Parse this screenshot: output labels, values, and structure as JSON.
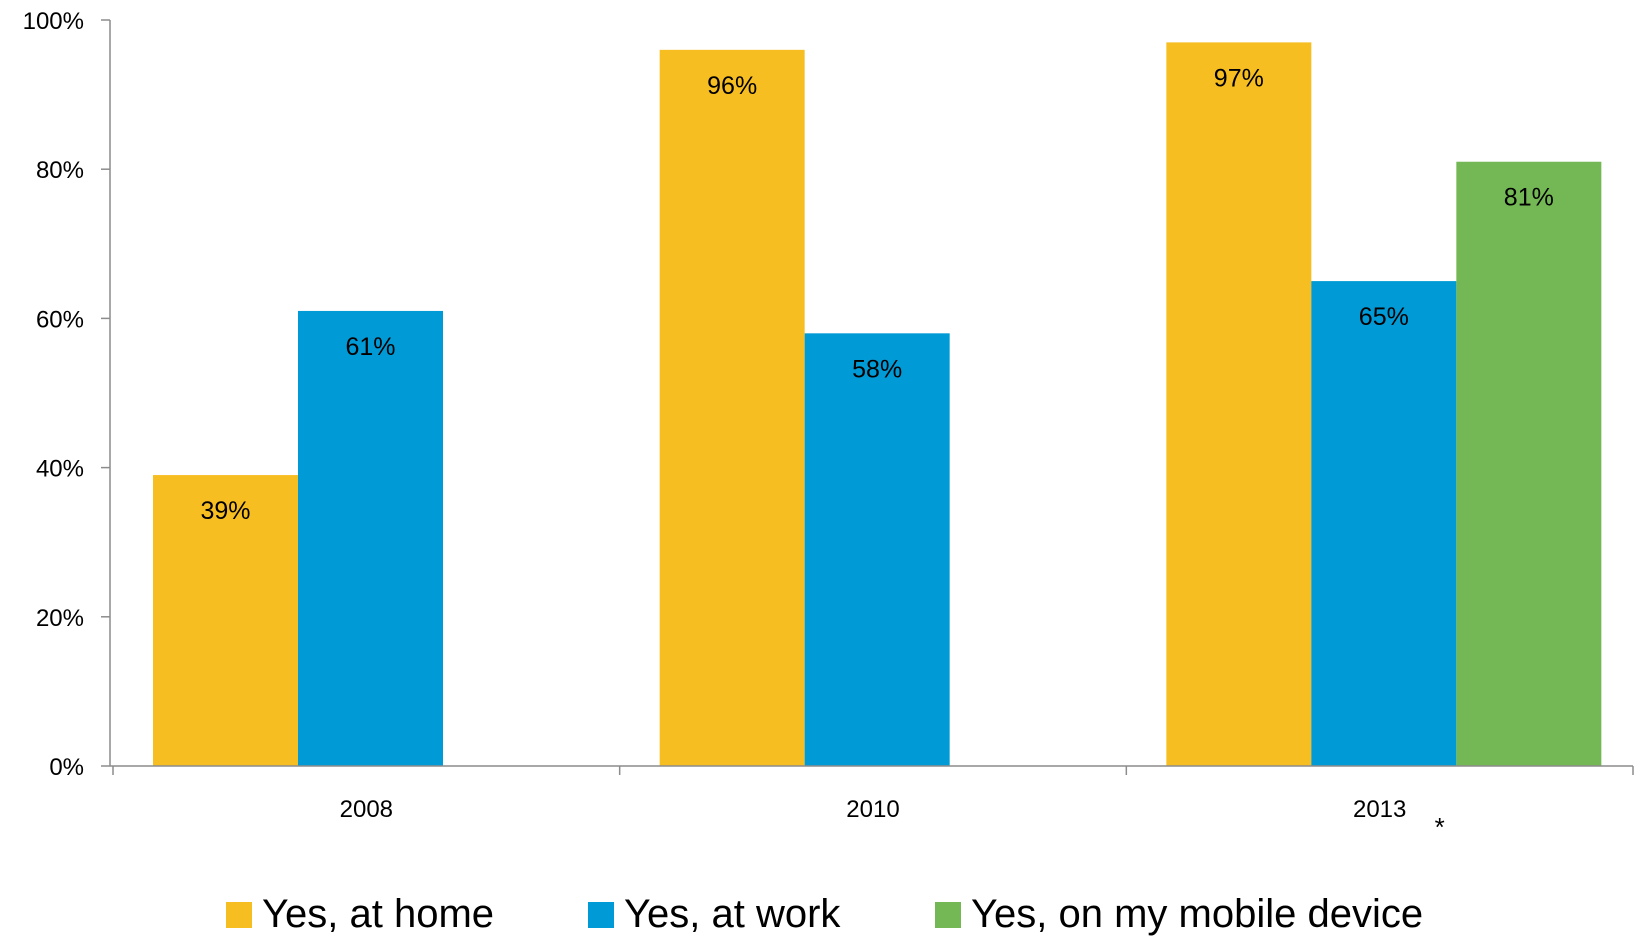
{
  "chart_data": {
    "type": "bar",
    "categories": [
      "2008",
      "2010",
      "2013"
    ],
    "category_annotations": [
      "",
      "",
      "*"
    ],
    "series": [
      {
        "name": "Yes, at home",
        "color": "#F7BE22",
        "values": [
          39,
          96,
          97
        ],
        "labels": [
          "39%",
          "96%",
          "97%"
        ]
      },
      {
        "name": "Yes, at work",
        "color": "#009AD6",
        "values": [
          61,
          58,
          65
        ],
        "labels": [
          "61%",
          "58%",
          "65%"
        ]
      },
      {
        "name": "Yes, on my mobile device",
        "color": "#74B855",
        "values": [
          null,
          null,
          81
        ],
        "labels": [
          "",
          "",
          "81%"
        ]
      }
    ],
    "yticks": [
      "0%",
      "20%",
      "40%",
      "60%",
      "80%",
      "100%"
    ],
    "ylim": [
      0,
      100
    ],
    "title": "",
    "xlabel": "",
    "ylabel": "",
    "grid": false,
    "legend_position": "bottom"
  }
}
